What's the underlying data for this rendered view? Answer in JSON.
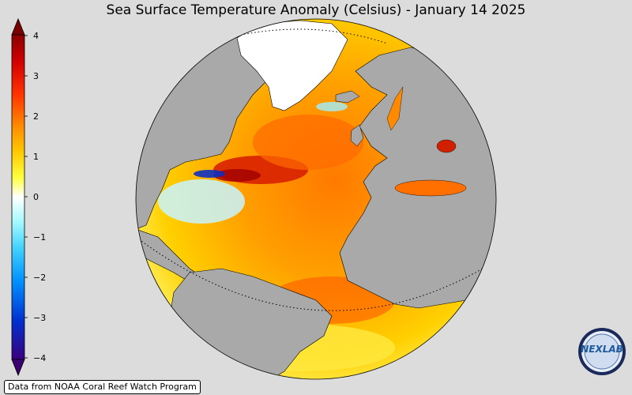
{
  "title": "Sea Surface Temperature Anomaly (Celsius) - January 14 2025",
  "colorbar": {
    "ticks": [
      "4",
      "3",
      "2",
      "1",
      "0",
      "−1",
      "−2",
      "−3",
      "−4"
    ],
    "colors": [
      "#7a0000",
      "#c40000",
      "#ff1a00",
      "#ff7f00",
      "#ffb300",
      "#ffee00",
      "#ffffff",
      "#8ff0ff",
      "#38c8ff",
      "#0090ff",
      "#0040d8",
      "#2a00a0",
      "#400070"
    ]
  },
  "map": {
    "projection": "orthographic",
    "center": "North Atlantic",
    "land_color": "#a9a9a9",
    "ocean_colors": [
      "#ffd400",
      "#ff9a00",
      "#ff6a00",
      "#e83000",
      "#b00000"
    ]
  },
  "credit": "Data from NOAA Coral Reef Watch Program",
  "logo": {
    "text": "NEXLAB",
    "icon": "nexlab-globe-logo"
  }
}
